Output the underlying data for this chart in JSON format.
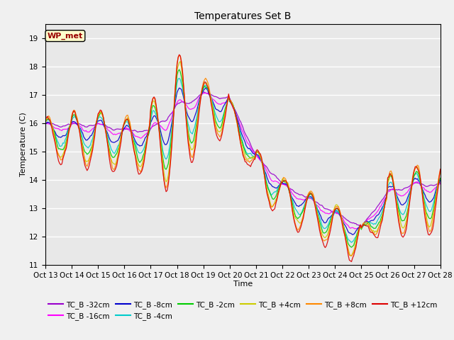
{
  "title": "Temperatures Set B",
  "xlabel": "Time",
  "ylabel": "Temperature (C)",
  "ylim": [
    11.0,
    19.5
  ],
  "yticks": [
    11.0,
    12.0,
    13.0,
    14.0,
    15.0,
    16.0,
    17.0,
    18.0,
    19.0
  ],
  "xtick_labels": [
    "Oct 13",
    "Oct 14",
    "Oct 15",
    "Oct 16",
    "Oct 17",
    "Oct 18",
    "Oct 19",
    "Oct 20",
    "Oct 21",
    "Oct 22",
    "Oct 23",
    "Oct 24",
    "Oct 25",
    "Oct 26",
    "Oct 27",
    "Oct 28"
  ],
  "annotation_text": "WP_met",
  "series_colors": [
    "#9900cc",
    "#ff00ff",
    "#0000cc",
    "#00cccc",
    "#00cc00",
    "#cccc00",
    "#ff8800",
    "#dd0000"
  ],
  "series_labels": [
    "TC_B -32cm",
    "TC_B -16cm",
    "TC_B -8cm",
    "TC_B -4cm",
    "TC_B -2cm",
    "TC_B +4cm",
    "TC_B +8cm",
    "TC_B +12cm"
  ],
  "bg_color": "#e8e8e8",
  "fig_bg": "#f0f0f0",
  "n_points": 361,
  "seed": 42
}
